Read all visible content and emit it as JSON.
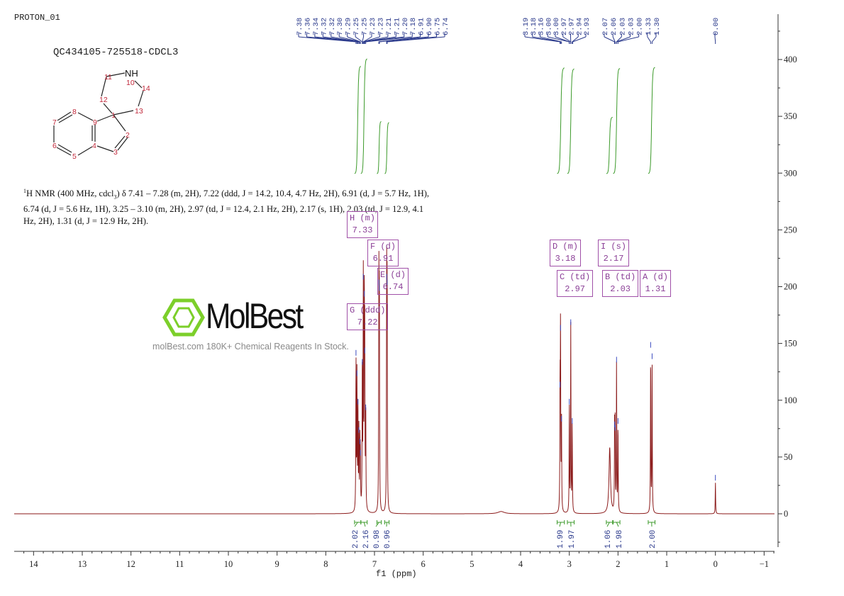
{
  "header": {
    "experiment": "PROTON_01",
    "sample": "QC434105-725518-CDCL3"
  },
  "structure": {
    "nh_label": "NH",
    "atom_numbers": [
      "1",
      "2",
      "3",
      "4",
      "5",
      "6",
      "7",
      "8",
      "9",
      "10",
      "11",
      "12",
      "13",
      "14"
    ]
  },
  "description": {
    "nucleus_sup": "1",
    "prefix": "H NMR (400 MHz, cdcl",
    "sub3": "3",
    "body": ") δ 7.41 – 7.28 (m, 2H), 7.22 (ddd, J = 14.2, 10.4, 4.7 Hz, 2H), 6.91 (d, J = 5.7 Hz, 1H), 6.74 (d, J = 5.6 Hz, 1H), 3.25 – 3.10 (m, 2H), 2.97 (td, J = 12.4, 2.1 Hz, 2H), 2.17 (s, 1H), 2.03 (td, J = 12.9, 4.1 Hz, 2H), 1.31 (d, J = 12.9 Hz, 2H)."
  },
  "watermark": {
    "brand": "MolBest",
    "tagline": "molBest.com 180K+ Chemical Reagents In Stock."
  },
  "colors": {
    "spectrum": "#8b1a1a",
    "integral": "#3c9a2a",
    "peak_label": "#2b3a8c",
    "multiplet_box": "#a050a8",
    "axis": "#333333"
  },
  "chart_data": {
    "type": "line",
    "xlabel": "f1 (ppm)",
    "ylabel": "",
    "xlim": [
      14.5,
      -1.2
    ],
    "ylim": [
      -35,
      440
    ],
    "x_reversed": true,
    "x_ticks": [
      "14",
      "13",
      "12",
      "11",
      "10",
      "9",
      "8",
      "7",
      "6",
      "5",
      "4",
      "3",
      "2",
      "1",
      "0",
      "-1"
    ],
    "x_tick_values": [
      14,
      13,
      12,
      11,
      10,
      9,
      8,
      7,
      6,
      5,
      4,
      3,
      2,
      1,
      0,
      -1
    ],
    "y_ticks": [
      "400",
      "350",
      "300",
      "250",
      "200",
      "150",
      "100",
      "50",
      "0"
    ],
    "y_tick_values": [
      400,
      350,
      300,
      250,
      200,
      150,
      100,
      50,
      0
    ],
    "y_axis_side": "right",
    "peaks": [
      {
        "ppm": 7.38,
        "height": 138
      },
      {
        "ppm": 7.36,
        "height": 120
      },
      {
        "ppm": 7.34,
        "height": 95
      },
      {
        "ppm": 7.32,
        "height": 70
      },
      {
        "ppm": 7.3,
        "height": 60
      },
      {
        "ppm": 7.29,
        "height": 50
      },
      {
        "ppm": 7.25,
        "height": 130
      },
      {
        "ppm": 7.23,
        "height": 205
      },
      {
        "ppm": 7.21,
        "height": 190
      },
      {
        "ppm": 7.2,
        "height": 140
      },
      {
        "ppm": 7.18,
        "height": 90
      },
      {
        "ppm": 6.91,
        "height": 200
      },
      {
        "ppm": 6.9,
        "height": 195
      },
      {
        "ppm": 6.75,
        "height": 205
      },
      {
        "ppm": 6.74,
        "height": 200
      },
      {
        "ppm": 3.19,
        "height": 110
      },
      {
        "ppm": 3.18,
        "height": 160
      },
      {
        "ppm": 3.16,
        "height": 80
      },
      {
        "ppm": 3.0,
        "height": 95
      },
      {
        "ppm": 2.97,
        "height": 165
      },
      {
        "ppm": 2.94,
        "height": 78
      },
      {
        "ppm": 2.17,
        "height": 58,
        "broad": true
      },
      {
        "ppm": 2.07,
        "height": 75
      },
      {
        "ppm": 2.06,
        "height": 72
      },
      {
        "ppm": 2.03,
        "height": 132
      },
      {
        "ppm": 2.0,
        "height": 78
      },
      {
        "ppm": 1.33,
        "height": 145
      },
      {
        "ppm": 1.3,
        "height": 135
      },
      {
        "ppm": 4.4,
        "height": 2,
        "broad": true
      },
      {
        "ppm": 0.0,
        "height": 28
      }
    ],
    "peak_labels": [
      [
        "7.38",
        "7.36",
        "7.34",
        "7.32",
        "7.32",
        "7.30",
        "7.29",
        "7.25",
        "7.25",
        "7.23",
        "7.23",
        "7.21",
        "7.21",
        "7.20",
        "7.18",
        "6.91",
        "6.90",
        "6.75",
        "6.74"
      ],
      [
        "3.19",
        "3.18",
        "3.16",
        "3.00",
        "3.00",
        "2.97",
        "2.97",
        "2.94",
        "2.93"
      ],
      [
        "2.07",
        "2.06",
        "2.03",
        "2.03",
        "2.00",
        "1.33",
        "1.30"
      ],
      [
        "0.00"
      ]
    ],
    "integrals": [
      {
        "from": 7.41,
        "to": 7.28,
        "value": "2.02"
      },
      {
        "from": 7.28,
        "to": 7.15,
        "value": "2.16"
      },
      {
        "from": 6.95,
        "to": 6.86,
        "value": "0.98"
      },
      {
        "from": 6.79,
        "to": 6.7,
        "value": "0.96"
      },
      {
        "from": 3.25,
        "to": 3.1,
        "value": "1.99"
      },
      {
        "from": 3.04,
        "to": 2.9,
        "value": "1.97"
      },
      {
        "from": 2.24,
        "to": 2.11,
        "value": "1.06"
      },
      {
        "from": 2.1,
        "to": 1.96,
        "value": "1.98"
      },
      {
        "from": 1.38,
        "to": 1.24,
        "value": "2.00"
      }
    ],
    "multiplets": [
      {
        "label": "H (m)",
        "shift": "7.33"
      },
      {
        "label": "F (d)",
        "shift": "6.91"
      },
      {
        "label": "E (d)",
        "shift": "6.74"
      },
      {
        "label": "G (ddd)",
        "shift": "7.22"
      },
      {
        "label": "D (m)",
        "shift": "3.18"
      },
      {
        "label": "I (s)",
        "shift": "2.17"
      },
      {
        "label": "C (td)",
        "shift": "2.97"
      },
      {
        "label": "B (td)",
        "shift": "2.03"
      },
      {
        "label": "A (d)",
        "shift": "1.31"
      }
    ]
  }
}
